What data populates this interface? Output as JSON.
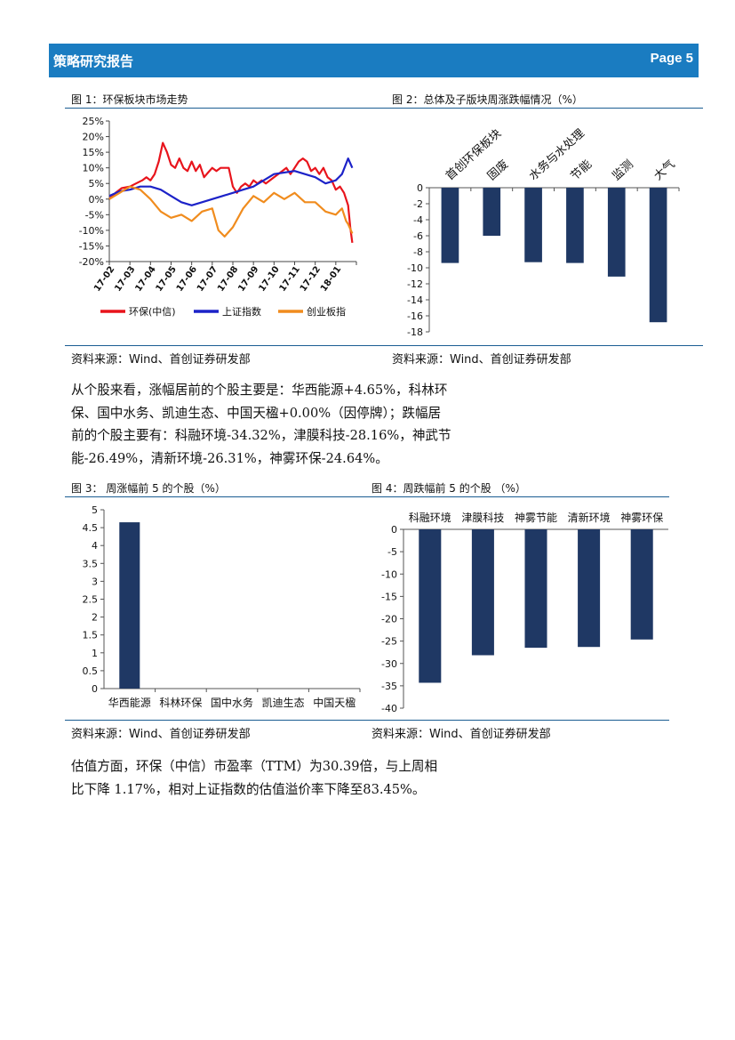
{
  "header": {
    "title": "策略研究报告",
    "page": "Page 5"
  },
  "fig1": {
    "caption": "图 1：环保板块市场走势",
    "source": "资料来源：Wind、首创证券研发部",
    "legend": [
      {
        "label": "环保(中信)",
        "color": "#e8141c"
      },
      {
        "label": "上证指数",
        "color": "#1c22c8"
      },
      {
        "label": "创业板指",
        "color": "#f08c1e"
      }
    ]
  },
  "fig2": {
    "caption": "图 2：总体及子版块周涨跌幅情况（%）",
    "source": "资料来源：Wind、首创证券研发部"
  },
  "fig3": {
    "caption": "图 3： 周涨幅前 5 的个股（%）",
    "source": "资料来源：Wind、首创证券研发部"
  },
  "fig4": {
    "caption": "图 4：周跌幅前 5 的个股 （%）",
    "source": "资料来源：Wind、首创证券研发部"
  },
  "para1": [
    "从个股来看，涨幅居前的个股主要是：华西能源+4.65%，科林环",
    "保、国中水务、凯迪生态、中国天楹+0.00%（因停牌）；跌幅居",
    "前的个股主要有：科融环境-34.32%，津膜科技-28.16%，神武节",
    "能-26.49%，清新环境-26.31%，神雾环保-24.64%。"
  ],
  "para2": [
    "估值方面，环保（中信）市盈率（TTM）为30.39倍，与上周相",
    "比下降 1.17%，相对上证指数的估值溢价率下降至83.45%。"
  ],
  "chart_data": [
    {
      "type": "line",
      "xlabel": "",
      "ylabel": "",
      "x_ticks": [
        "17-02",
        "17-03",
        "17-04",
        "17-05",
        "17-06",
        "17-07",
        "17-08",
        "17-09",
        "17-10",
        "17-11",
        "17-12",
        "18-01"
      ],
      "y_ticks": [
        "25%",
        "20%",
        "15%",
        "10%",
        "5%",
        "0%",
        "-5%",
        "-10%",
        "-15%",
        "-20%"
      ],
      "ylim": [
        -20,
        25
      ],
      "grid": false,
      "legend_position": "bottom",
      "series": [
        {
          "name": "环保(中信)",
          "color": "#e8141c",
          "x": [
            0,
            0.3,
            0.6,
            1,
            1.3,
            1.6,
            1.8,
            2,
            2.2,
            2.4,
            2.6,
            2.8,
            3,
            3.2,
            3.4,
            3.6,
            3.8,
            4,
            4.2,
            4.4,
            4.6,
            4.8,
            5,
            5.2,
            5.4,
            5.6,
            5.8,
            6,
            6.2,
            6.4,
            6.6,
            6.8,
            7,
            7.2,
            7.4,
            7.6,
            7.8,
            8,
            8.2,
            8.4,
            8.6,
            8.8,
            9,
            9.2,
            9.4,
            9.6,
            9.8,
            10,
            10.2,
            10.4,
            10.6,
            10.8,
            11,
            11.2,
            11.4,
            11.6,
            11.7,
            11.8
          ],
          "y": [
            0,
            2,
            3.5,
            4,
            5,
            6,
            7,
            6,
            8,
            12,
            18,
            15,
            11,
            10,
            13,
            10,
            9,
            12,
            9,
            11,
            7,
            8.5,
            10,
            9,
            10,
            10,
            10,
            4,
            2,
            4,
            5,
            4,
            6,
            5,
            6,
            5,
            6,
            7,
            8,
            9,
            10,
            8,
            10,
            12,
            13,
            12,
            9,
            10,
            8,
            10,
            7,
            6,
            3,
            4,
            2,
            -2,
            -9,
            -14
          ]
        },
        {
          "name": "上证指数",
          "color": "#1c22c8",
          "x": [
            0,
            0.5,
            1,
            1.5,
            2,
            2.5,
            3,
            3.5,
            4,
            4.5,
            5,
            5.5,
            6,
            6.5,
            7,
            7.5,
            8,
            8.5,
            9,
            9.5,
            10,
            10.5,
            11,
            11.3,
            11.6,
            11.8
          ],
          "y": [
            1,
            2.5,
            3,
            4,
            4,
            3,
            1,
            -1,
            -2,
            -1,
            0,
            1,
            2,
            3,
            4,
            6,
            8,
            8.5,
            9,
            8,
            7,
            5,
            6,
            8,
            13,
            10
          ]
        },
        {
          "name": "创业板指",
          "color": "#f08c1e",
          "x": [
            0,
            0.5,
            1,
            1.5,
            2,
            2.5,
            3,
            3.5,
            4,
            4.5,
            5,
            5.3,
            5.6,
            6,
            6.5,
            7,
            7.5,
            8,
            8.5,
            9,
            9.5,
            10,
            10.5,
            11,
            11.3,
            11.5,
            11.6,
            11.8
          ],
          "y": [
            0,
            2,
            4,
            3,
            0,
            -4,
            -6,
            -5,
            -7,
            -4,
            -3,
            -10,
            -12,
            -9,
            -3,
            1,
            -1,
            2,
            0,
            2,
            -1,
            -1,
            -4,
            -5,
            -3,
            -7,
            -8,
            -11
          ]
        }
      ]
    },
    {
      "type": "bar",
      "categories": [
        "首创环保板块",
        "固废",
        "水务与水处理",
        "节能",
        "监测",
        "大气"
      ],
      "values": [
        -9.4,
        -6.0,
        -9.3,
        -9.4,
        -11.1,
        -16.8
      ],
      "ylim": [
        -18,
        0
      ],
      "y_ticks": [
        "0",
        "-2",
        "-4",
        "-6",
        "-8",
        "-10",
        "-12",
        "-14",
        "-16",
        "-18"
      ],
      "color": "#1f3864"
    },
    {
      "type": "bar",
      "categories": [
        "华西能源",
        "科林环保",
        "国中水务",
        "凯迪生态",
        "中国天楹"
      ],
      "values": [
        4.65,
        0,
        0,
        0,
        0
      ],
      "ylim": [
        0,
        5
      ],
      "y_ticks": [
        "5",
        "4.5",
        "4",
        "3.5",
        "3",
        "2.5",
        "2",
        "1.5",
        "1",
        "0.5",
        "0"
      ],
      "color": "#1f3864"
    },
    {
      "type": "bar",
      "categories": [
        "科融环境",
        "津膜科技",
        "神雾节能",
        "清新环境",
        "神雾环保"
      ],
      "values": [
        -34.32,
        -28.16,
        -26.49,
        -26.31,
        -24.64
      ],
      "ylim": [
        -40,
        0
      ],
      "y_ticks": [
        "0",
        "-5",
        "-10",
        "-15",
        "-20",
        "-25",
        "-30",
        "-35",
        "-40"
      ],
      "color": "#1f3864"
    }
  ]
}
